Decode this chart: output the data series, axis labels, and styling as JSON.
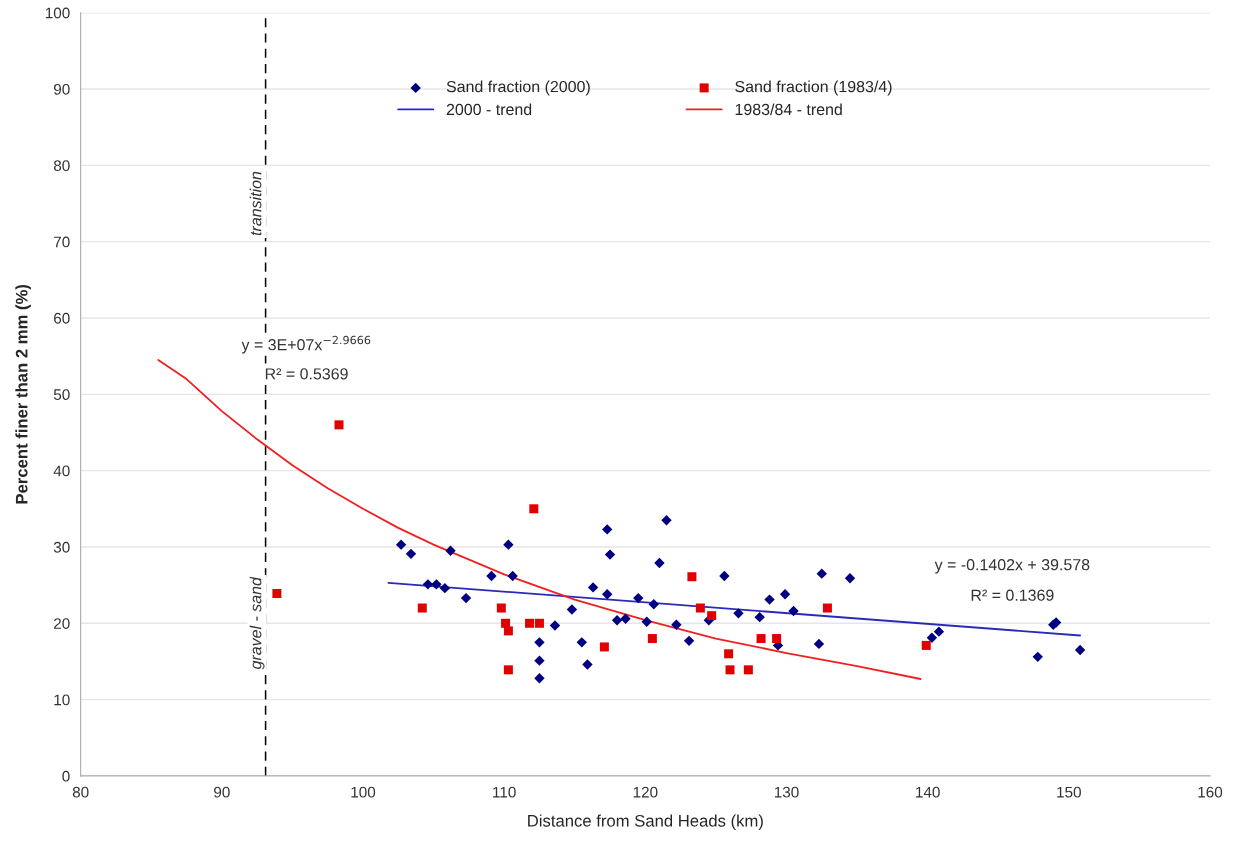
{
  "chart_data": {
    "type": "scatter",
    "xlabel": "Distance from Sand Heads (km)",
    "ylabel": "Percent finer than 2 mm (%)",
    "xlim": [
      80,
      160
    ],
    "xticks": [
      80,
      90,
      100,
      110,
      120,
      130,
      140,
      150,
      160
    ],
    "ylim": [
      0,
      100
    ],
    "yticks": [
      0,
      10,
      20,
      30,
      40,
      50,
      60,
      70,
      80,
      90,
      100
    ],
    "grid": "y",
    "legend": "top",
    "series": [
      {
        "name": "Sand fraction (2000)",
        "marker": "diamond",
        "color": "#000080",
        "x": [
          102.7,
          103.4,
          104.6,
          105.2,
          105.8,
          106.2,
          107.3,
          109.1,
          110.3,
          110.6,
          112.5,
          112.5,
          112.5,
          113.6,
          114.8,
          115.5,
          115.9,
          116.3,
          117.3,
          117.5,
          117.3,
          118.0,
          118.6,
          119.5,
          120.1,
          120.6,
          121.0,
          121.5,
          122.2,
          123.1,
          124.5,
          125.6,
          126.6,
          128.1,
          128.8,
          129.9,
          129.4,
          130.5,
          132.3,
          132.5,
          134.5,
          140.3,
          140.8,
          147.8,
          148.9,
          149.1,
          150.8
        ],
        "values": [
          30.3,
          29.1,
          25.1,
          25.1,
          24.6,
          29.5,
          23.3,
          26.2,
          30.3,
          26.2,
          17.5,
          15.1,
          12.8,
          19.7,
          21.8,
          17.5,
          14.6,
          24.7,
          32.3,
          29.0,
          23.8,
          20.4,
          20.6,
          23.3,
          20.2,
          22.5,
          27.9,
          33.5,
          19.8,
          17.7,
          20.4,
          26.2,
          21.3,
          20.8,
          23.1,
          23.8,
          17.1,
          21.6,
          17.3,
          26.5,
          25.9,
          18.1,
          18.9,
          15.6,
          19.8,
          20.1,
          16.5
        ]
      },
      {
        "name": "2000 - trend",
        "type": "line",
        "line_style": "solid",
        "marker": "none",
        "color": "#2a2ab8",
        "x": [
          101.8,
          150.8
        ],
        "values": [
          25.3,
          18.4
        ]
      },
      {
        "name": "Sand fraction (1983/4)",
        "marker": "square",
        "color": "#e00000",
        "x": [
          98.3,
          93.9,
          104.2,
          109.8,
          110.1,
          110.3,
          110.3,
          111.8,
          112.5,
          112.1,
          117.1,
          120.5,
          123.3,
          123.9,
          124.7,
          125.9,
          126.0,
          127.3,
          128.2,
          129.3,
          132.9,
          139.9
        ],
        "values": [
          46.0,
          23.9,
          22.0,
          22.0,
          20.0,
          19.0,
          13.9,
          20.0,
          20.0,
          35.0,
          16.9,
          18.0,
          26.1,
          22.0,
          21.0,
          16.0,
          13.9,
          13.9,
          18.0,
          18.0,
          22.0,
          17.1
        ]
      },
      {
        "name": "1983/84 - trend",
        "type": "line",
        "line_style": "solid",
        "marker": "none",
        "color": "#f02020",
        "x": [
          85.5,
          87.5,
          90,
          92.5,
          95,
          97.5,
          100,
          102.5,
          105,
          110,
          115,
          120,
          125,
          130,
          135,
          139.5
        ],
        "values": [
          54.5,
          52.0,
          47.8,
          44.1,
          40.7,
          37.7,
          35.0,
          32.5,
          30.3,
          26.4,
          23.1,
          20.4,
          18.0,
          16.1,
          14.4,
          12.7
        ]
      }
    ],
    "ref_lines": [
      {
        "axis": "x",
        "value": 93.1,
        "color": "#000000",
        "line_style": "dashed"
      }
    ],
    "annotations": [
      {
        "text": "transition",
        "x": 93.1,
        "y": 75
      },
      {
        "text": "gravel - sand",
        "x": 93.1,
        "y": 20
      },
      "y = 3E+07x$^{−2.9666}$",
      "R² = 0.5369",
      "y = -0.1402x + 39.578",
      "R² = 0.1369"
    ]
  }
}
